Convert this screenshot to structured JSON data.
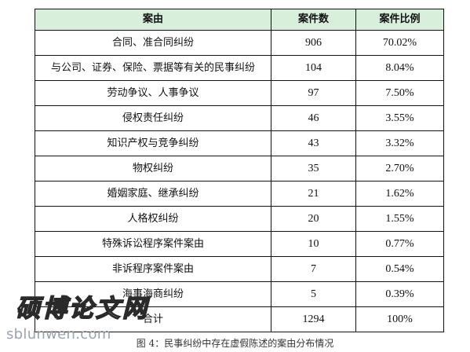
{
  "table": {
    "headers": [
      "案由",
      "案件数",
      "案件比例"
    ],
    "rows": [
      {
        "category": "合同、准合同纠纷",
        "count": "906",
        "ratio": "70.02%"
      },
      {
        "category": "与公司、证券、保险、票据等有关的民事纠纷",
        "count": "104",
        "ratio": "8.04%"
      },
      {
        "category": "劳动争议、人事争议",
        "count": "97",
        "ratio": "7.50%"
      },
      {
        "category": "侵权责任纠纷",
        "count": "46",
        "ratio": "3.55%"
      },
      {
        "category": "知识产权与竞争纠纷",
        "count": "43",
        "ratio": "3.32%"
      },
      {
        "category": "物权纠纷",
        "count": "35",
        "ratio": "2.70%"
      },
      {
        "category": "婚姻家庭、继承纠纷",
        "count": "21",
        "ratio": "1.62%"
      },
      {
        "category": "人格权纠纷",
        "count": "20",
        "ratio": "1.55%"
      },
      {
        "category": "特殊诉讼程序案件案由",
        "count": "10",
        "ratio": "0.77%"
      },
      {
        "category": "非诉程序案件案由",
        "count": "7",
        "ratio": "0.54%"
      },
      {
        "category": "海事海商纠纷",
        "count": "5",
        "ratio": "0.39%"
      }
    ],
    "total": {
      "category": "合计",
      "count": "1294",
      "ratio": "100%"
    }
  },
  "caption": {
    "label": "图 4：",
    "text": "民事纠纷中存在虚假陈述的案由分布情况"
  },
  "watermark": {
    "text": "硕博论文网",
    "url": "sblunwen.com"
  },
  "colors": {
    "header_bg": "#d8efdc",
    "border": "#111111",
    "watermark_url": "#9aa3ad"
  }
}
